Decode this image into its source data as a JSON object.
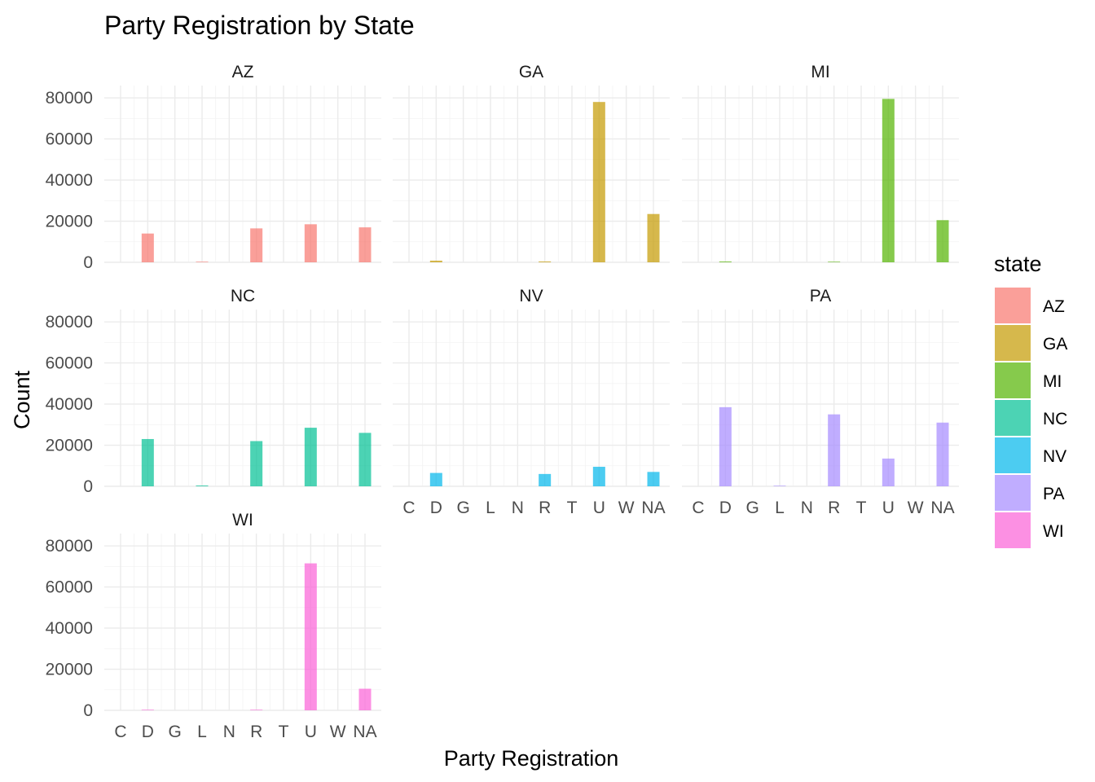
{
  "chart_data": {
    "type": "bar",
    "title": "Party Registration by State",
    "xlabel": "Party Registration",
    "ylabel": "Count",
    "ylim": [
      0,
      86000
    ],
    "yticks": [
      0,
      20000,
      40000,
      60000,
      80000
    ],
    "categories": [
      "C",
      "D",
      "G",
      "L",
      "N",
      "R",
      "T",
      "U",
      "W",
      "NA"
    ],
    "grid": true,
    "legend": {
      "title": "state",
      "position": "right",
      "entries": [
        "AZ",
        "GA",
        "MI",
        "NC",
        "NV",
        "PA",
        "WI"
      ]
    },
    "series": [
      {
        "name": "AZ",
        "color": "#F8766D",
        "values": [
          0,
          14000,
          0,
          300,
          0,
          16500,
          0,
          18500,
          0,
          17000
        ]
      },
      {
        "name": "GA",
        "color": "#C49A00",
        "values": [
          0,
          800,
          0,
          0,
          0,
          400,
          0,
          78000,
          0,
          23500
        ]
      },
      {
        "name": "MI",
        "color": "#53B400",
        "values": [
          0,
          400,
          0,
          0,
          0,
          300,
          0,
          79500,
          0,
          20500
        ]
      },
      {
        "name": "NC",
        "color": "#00C094",
        "values": [
          0,
          23000,
          0,
          400,
          0,
          22000,
          0,
          28500,
          0,
          26000
        ]
      },
      {
        "name": "NV",
        "color": "#00B6EB",
        "values": [
          0,
          6500,
          0,
          0,
          0,
          6000,
          0,
          9500,
          0,
          7000
        ]
      },
      {
        "name": "PA",
        "color": "#A58AFF",
        "values": [
          0,
          38500,
          0,
          300,
          0,
          35000,
          0,
          13500,
          0,
          31000
        ]
      },
      {
        "name": "WI",
        "color": "#FB61D7",
        "values": [
          0,
          300,
          0,
          0,
          0,
          300,
          0,
          71500,
          0,
          10500
        ]
      }
    ]
  }
}
